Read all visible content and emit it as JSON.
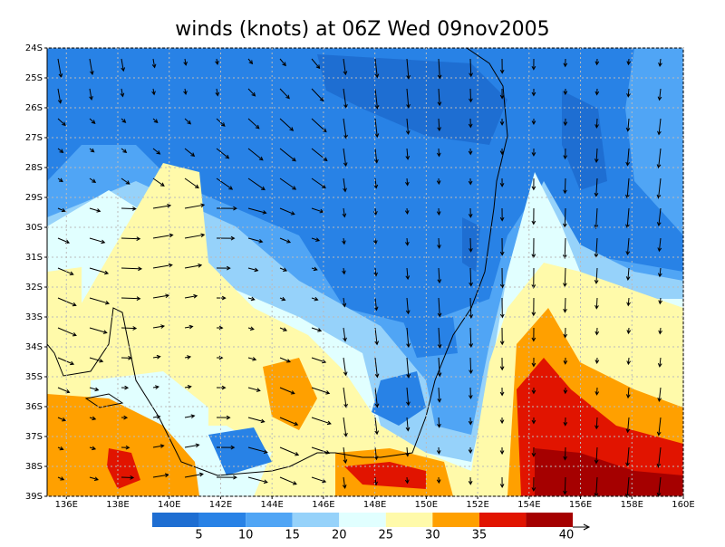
{
  "chart_data": {
    "type": "map",
    "title": "winds (knots) at 06Z Wed 09nov2005",
    "xlim": [
      135.25,
      160
    ],
    "ylim": [
      -39,
      -24
    ],
    "xticks": [
      {
        "value": 136,
        "label": "136E"
      },
      {
        "value": 138,
        "label": "138E"
      },
      {
        "value": 140,
        "label": "140E"
      },
      {
        "value": 142,
        "label": "142E"
      },
      {
        "value": 144,
        "label": "144E"
      },
      {
        "value": 146,
        "label": "146E"
      },
      {
        "value": 148,
        "label": "148E"
      },
      {
        "value": 150,
        "label": "150E"
      },
      {
        "value": 152,
        "label": "152E"
      },
      {
        "value": 154,
        "label": "154E"
      },
      {
        "value": 156,
        "label": "156E"
      },
      {
        "value": 158,
        "label": "158E"
      },
      {
        "value": 160,
        "label": "160E"
      }
    ],
    "yticks": [
      {
        "value": -24,
        "label": "24S"
      },
      {
        "value": -25,
        "label": "25S"
      },
      {
        "value": -26,
        "label": "26S"
      },
      {
        "value": -27,
        "label": "27S"
      },
      {
        "value": -28,
        "label": "28S"
      },
      {
        "value": -29,
        "label": "29S"
      },
      {
        "value": -30,
        "label": "30S"
      },
      {
        "value": -31,
        "label": "31S"
      },
      {
        "value": -32,
        "label": "32S"
      },
      {
        "value": -33,
        "label": "33S"
      },
      {
        "value": -34,
        "label": "34S"
      },
      {
        "value": -35,
        "label": "35S"
      },
      {
        "value": -36,
        "label": "36S"
      },
      {
        "value": -37,
        "label": "37S"
      },
      {
        "value": -38,
        "label": "38S"
      },
      {
        "value": -39,
        "label": "39S"
      }
    ],
    "grid": true,
    "colorbar": {
      "colors": [
        "#1e6ed2",
        "#2882e6",
        "#50a5f5",
        "#96d2fa",
        "#e1ffff",
        "#fffaaa",
        "#ffa000",
        "#e11400",
        "#a50000"
      ],
      "labels": [
        5,
        10,
        15,
        20,
        25,
        30,
        35,
        40
      ]
    }
  }
}
